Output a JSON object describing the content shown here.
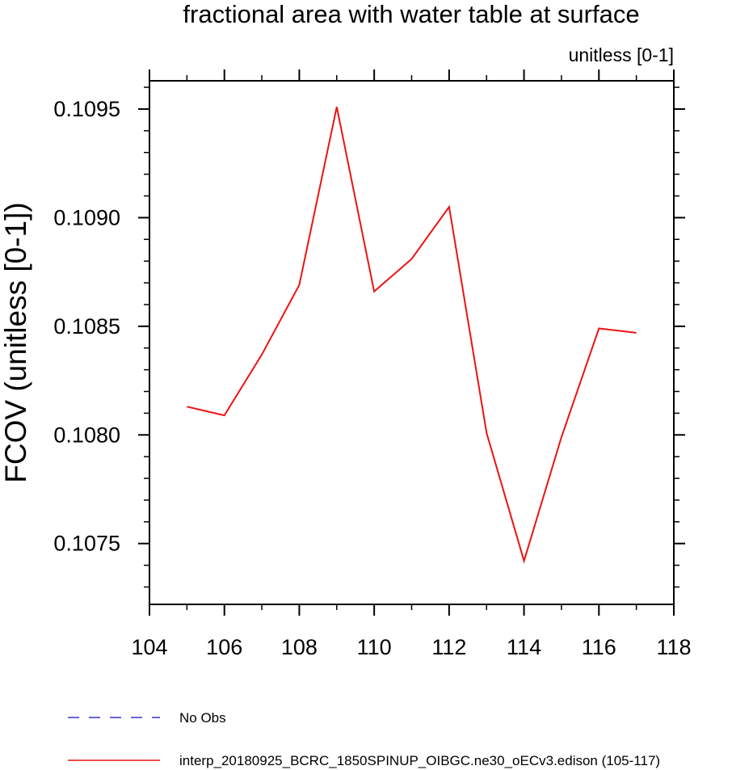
{
  "chart_data": {
    "type": "line",
    "title": "fractional area with water table at surface",
    "units_label": "unitless [0-1]",
    "ylabel": "FCOV  (unitless [0-1])",
    "xlabel": "",
    "xlim": [
      104,
      118
    ],
    "ylim": [
      0.10722,
      0.10963
    ],
    "x_ticks": [
      104,
      106,
      108,
      110,
      112,
      114,
      116,
      118
    ],
    "x_tick_labels": [
      "104",
      "106",
      "108",
      "110",
      "112",
      "114",
      "116",
      "118"
    ],
    "y_ticks": [
      0.1075,
      0.108,
      0.1085,
      0.109,
      0.1095
    ],
    "y_tick_labels": [
      "0.1075",
      "0.1080",
      "0.1085",
      "0.1090",
      "0.1095"
    ],
    "x_minor_step": 1,
    "y_minor_step": 0.0001,
    "grid": false,
    "legend_position": "bottom",
    "series": [
      {
        "name": "No Obs",
        "color": "#3333cc",
        "dash": "dashed",
        "x": [],
        "y": []
      },
      {
        "name": "interp_20180925_BCRC_1850SPINUP_OIBGC.ne30_oECv3.edison (105-117)",
        "color": "#ee1111",
        "dash": "solid",
        "x": [
          105,
          106,
          107,
          108,
          109,
          110,
          111,
          112,
          113,
          114,
          115,
          116,
          117
        ],
        "y": [
          0.10813,
          0.10809,
          0.10837,
          0.10869,
          0.10951,
          0.10866,
          0.10881,
          0.10905,
          0.10801,
          0.10742,
          0.10799,
          0.10849,
          0.10847
        ]
      }
    ]
  }
}
